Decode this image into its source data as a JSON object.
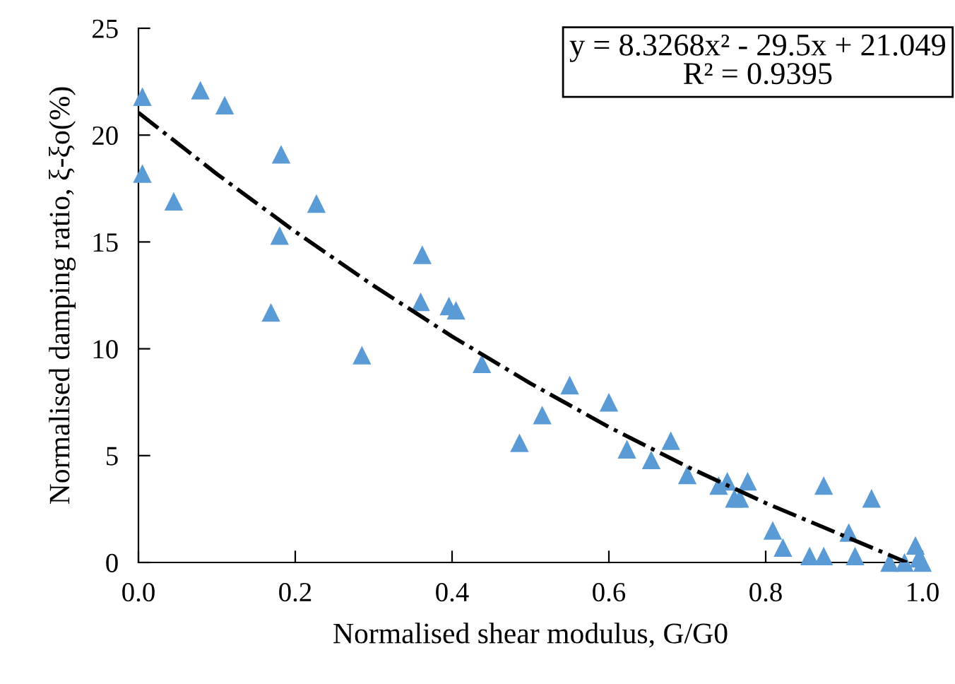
{
  "chart_data": {
    "type": "scatter",
    "xlabel": "Normalised shear modulus, G/G0",
    "ylabel": "Normalised damping ratio, ξ-ξo(%)",
    "xlim": [
      0,
      1
    ],
    "ylim": [
      0,
      25
    ],
    "xticks": [
      {
        "value": 0,
        "label": "0.0"
      },
      {
        "value": 0.2,
        "label": "0.2"
      },
      {
        "value": 0.4,
        "label": "0.4"
      },
      {
        "value": 0.6,
        "label": "0.6"
      },
      {
        "value": 0.8,
        "label": "0.8"
      },
      {
        "value": 1,
        "label": "1.0"
      }
    ],
    "yticks": [
      0,
      5,
      10,
      15,
      20,
      25
    ],
    "grid": false,
    "annotations": [
      "y = 8.3268x² - 29.5x + 21.049\nR² = 0.9395"
    ],
    "series": [
      {
        "color": "#5b9bd5",
        "marker": "triangle",
        "x": [
          0.005,
          0.079,
          0.11,
          0.005,
          0.045,
          0.182,
          0.227,
          0.18,
          0.169,
          0.285,
          0.362,
          0.36,
          0.396,
          0.405,
          0.438,
          0.486,
          0.515,
          0.55,
          0.6,
          0.623,
          0.654,
          0.679,
          0.7,
          0.74,
          0.751,
          0.76,
          0.767,
          0.777,
          0.809,
          0.822,
          0.856,
          0.874,
          0.874,
          0.906,
          0.914,
          0.935,
          0.958,
          0.977,
          0.991,
          0.995,
          1.0
        ],
        "values": [
          21.8,
          22.1,
          21.4,
          18.2,
          16.9,
          19.1,
          16.8,
          15.3,
          11.7,
          9.7,
          14.4,
          12.2,
          12.0,
          11.8,
          9.3,
          5.6,
          6.9,
          8.3,
          7.5,
          5.3,
          4.8,
          5.7,
          4.1,
          3.6,
          3.8,
          3.0,
          3.0,
          3.8,
          1.5,
          0.7,
          0.3,
          0.3,
          3.6,
          1.4,
          0.3,
          3.0,
          0,
          0,
          0.8,
          0.2,
          0
        ]
      },
      {
        "type": "line",
        "color": "#000000",
        "marker": "none",
        "line_style": "dashdot",
        "x": [
          0,
          0.1,
          0.2,
          0.3,
          0.4,
          0.5,
          0.6,
          0.7,
          0.8,
          0.9,
          0.98
        ],
        "values": [
          21.05,
          18.18,
          15.48,
          12.95,
          10.58,
          8.38,
          6.34,
          4.48,
          2.78,
          1.24,
          0.0
        ]
      }
    ]
  }
}
